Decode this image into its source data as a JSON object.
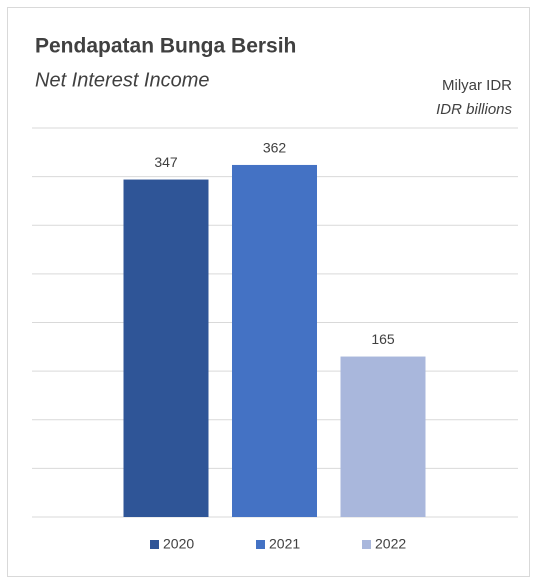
{
  "chart_data": {
    "type": "bar",
    "title": "Pendapatan Bunga Bersih",
    "subtitle": "Net Interest Income",
    "unit_label": "Milyar IDR",
    "unit_label_en": "IDR billions",
    "series": [
      {
        "name": "2020",
        "color": "#2f5597",
        "values": [
          347
        ]
      },
      {
        "name": "2021",
        "color": "#4472c4",
        "values": [
          362
        ]
      },
      {
        "name": "2022",
        "color": "#a9b7dc",
        "values": [
          165
        ]
      }
    ],
    "ylim": [
      0,
      400
    ],
    "yticks": [
      0,
      50,
      100,
      150,
      200,
      250,
      300,
      350,
      400
    ],
    "grid": true,
    "legend": "bottom"
  }
}
